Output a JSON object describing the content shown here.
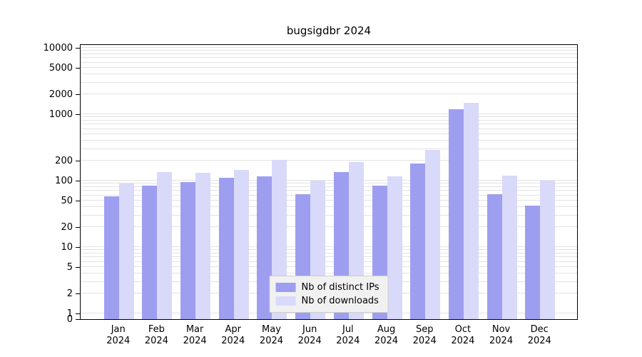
{
  "chart_data": {
    "type": "bar",
    "title": "bugsigdbr 2024",
    "scale": "log",
    "grid": true,
    "legend_position": "bottom-center",
    "categories": [
      "Jan",
      "Feb",
      "Mar",
      "Apr",
      "May",
      "Jun",
      "Jul",
      "Aug",
      "Sep",
      "Oct",
      "Nov",
      "Dec"
    ],
    "year_label": "2024",
    "yticks": [
      0,
      1,
      2,
      5,
      10,
      20,
      50,
      100,
      200,
      1000,
      2000,
      5000,
      10000
    ],
    "ylim": [
      0,
      11000
    ],
    "series": [
      {
        "name": "Nb of distinct IPs",
        "color": "#9e9ef0",
        "values": [
          58,
          84,
          95,
          110,
          115,
          63,
          135,
          85,
          180,
          1200,
          62,
          42
        ]
      },
      {
        "name": "Nb of downloads",
        "color": "#d9d9fa",
        "values": [
          90,
          135,
          130,
          145,
          205,
          100,
          190,
          115,
          290,
          1500,
          120,
          100
        ]
      }
    ]
  }
}
